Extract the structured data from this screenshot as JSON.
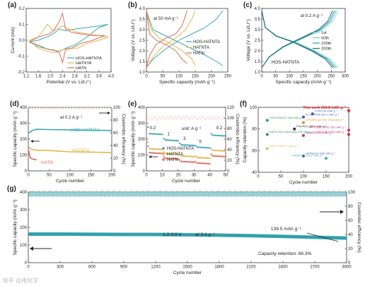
{
  "chart_data": [
    {
      "panel": "(a)",
      "type": "line",
      "xlabel": "Potential (V vs. Li/Li⁺)",
      "ylabel": "Current (mA)",
      "xlim": [
        1.2,
        4.0
      ],
      "ylim": [
        -0.2,
        0.2
      ],
      "xticks": [
        "1.2",
        "1.6",
        "2.0",
        "2.4",
        "2.8",
        "3.2",
        "3.6",
        "4.0"
      ],
      "yticks": [
        "-0.2",
        "-0.1",
        "0.0",
        "0.1",
        "0.2"
      ],
      "legend": [
        "HOS-HATNTA",
        "HATNTA",
        "HATN"
      ],
      "colors": [
        "#3aa9b4",
        "#e0b84c",
        "#e06c5c"
      ],
      "series": [
        {
          "name": "HOS-HATNTA",
          "x": [
            1.3,
            1.6,
            2.0,
            2.3,
            2.5,
            2.8,
            3.2,
            3.6,
            3.9,
            3.6,
            3.2,
            2.8,
            2.5,
            2.3,
            2.0,
            1.6,
            1.3
          ],
          "y": [
            -0.01,
            0.0,
            0.03,
            0.07,
            0.06,
            0.07,
            0.08,
            0.09,
            0.1,
            0.08,
            0.02,
            -0.03,
            -0.05,
            -0.07,
            -0.06,
            -0.04,
            -0.01
          ]
        },
        {
          "name": "HATNTA",
          "x": [
            1.3,
            1.6,
            1.9,
            2.1,
            2.4,
            2.6,
            2.9,
            3.2,
            3.6,
            3.9,
            3.6,
            3.2,
            2.9,
            2.6,
            2.4,
            2.1,
            1.9,
            1.6,
            1.3
          ],
          "y": [
            0.0,
            0.02,
            0.1,
            0.06,
            0.09,
            0.07,
            0.05,
            0.04,
            0.03,
            0.02,
            0.0,
            -0.02,
            -0.05,
            -0.05,
            -0.06,
            -0.08,
            -0.07,
            -0.05,
            0.0
          ]
        },
        {
          "name": "HATN",
          "x": [
            1.3,
            1.6,
            1.95,
            2.1,
            2.3,
            2.4,
            2.5,
            2.7,
            3.0,
            3.4,
            3.8,
            3.4,
            3.0,
            2.7,
            2.5,
            2.4,
            2.3,
            2.1,
            1.95,
            1.6,
            1.3
          ],
          "y": [
            -0.01,
            0.02,
            0.04,
            0.06,
            0.12,
            0.17,
            0.07,
            0.05,
            0.04,
            0.03,
            0.03,
            0.0,
            -0.02,
            -0.05,
            -0.06,
            -0.14,
            -0.08,
            -0.06,
            -0.06,
            -0.03,
            -0.01
          ]
        }
      ]
    },
    {
      "panel": "(b)",
      "type": "line",
      "xlabel": "Specific capacity (mAh g⁻¹)",
      "ylabel": "Voltage (V vs. Li/Li⁺)",
      "xlim": [
        0,
        250
      ],
      "ylim": [
        1.0,
        4.0
      ],
      "xticks": [
        "0",
        "50",
        "100",
        "150",
        "200",
        "250"
      ],
      "yticks": [
        "1.0",
        "1.5",
        "2.0",
        "2.5",
        "3.0",
        "3.5",
        "4.0"
      ],
      "annotation": "at 50 mA g⁻¹",
      "legend": [
        "HOS-HATNTA",
        "HATNTA",
        "HATN"
      ],
      "colors": [
        "#3aa9b4",
        "#e0b84c",
        "#e06c5c"
      ],
      "series": [
        {
          "name": "HOS-HATNTA charge",
          "x": [
            0,
            20,
            60,
            100,
            140,
            180,
            215,
            235
          ],
          "y": [
            1.2,
            1.6,
            2.1,
            2.5,
            2.8,
            3.1,
            3.5,
            3.9
          ]
        },
        {
          "name": "HOS-HATNTA discharge",
          "x": [
            0,
            20,
            60,
            100,
            140,
            180,
            215,
            235
          ],
          "y": [
            3.9,
            3.0,
            2.7,
            2.4,
            2.1,
            1.8,
            1.5,
            1.3
          ]
        },
        {
          "name": "HATNTA charge",
          "x": [
            0,
            20,
            50,
            90,
            120,
            140,
            150
          ],
          "y": [
            1.2,
            1.7,
            2.2,
            2.6,
            3.0,
            3.5,
            3.9
          ]
        },
        {
          "name": "HATNTA discharge",
          "x": [
            0,
            15,
            40,
            80,
            110,
            140,
            150
          ],
          "y": [
            3.9,
            3.0,
            2.6,
            2.3,
            2.0,
            1.6,
            1.3
          ]
        },
        {
          "name": "HATN charge",
          "x": [
            0,
            10,
            30,
            60,
            90,
            110,
            125
          ],
          "y": [
            1.2,
            1.8,
            2.3,
            2.6,
            2.8,
            3.2,
            3.9
          ]
        },
        {
          "name": "HATN discharge",
          "x": [
            0,
            10,
            30,
            60,
            90,
            110,
            125
          ],
          "y": [
            3.9,
            2.8,
            2.5,
            2.3,
            2.0,
            1.6,
            1.4
          ]
        }
      ]
    },
    {
      "panel": "(c)",
      "type": "line",
      "xlabel": "Specific capacity (mAh g⁻¹)",
      "ylabel": "Voltage (V vs. Li/Li⁺)",
      "xlim": [
        0,
        300
      ],
      "ylim": [
        1.0,
        4.0
      ],
      "xticks": [
        "0",
        "50",
        "100",
        "150",
        "200",
        "250",
        "300"
      ],
      "yticks": [
        "1.0",
        "1.5",
        "2.0",
        "2.5",
        "3.0",
        "3.5",
        "4.0"
      ],
      "annotation": "at 0.2 A g⁻¹",
      "sample": "HOS-HATNTA",
      "legend": [
        "1st",
        "50th",
        "100th",
        "200th"
      ],
      "colors": [
        "#9fd8dc",
        "#6cc3c9",
        "#2e9aa3",
        "#1f6f73"
      ],
      "series": [
        {
          "name": "1st",
          "cap": 275
        },
        {
          "name": "50th",
          "cap": 268
        },
        {
          "name": "100th",
          "cap": 262
        },
        {
          "name": "200th",
          "cap": 255
        }
      ]
    },
    {
      "panel": "(d)",
      "type": "line",
      "xlabel": "Cycle number",
      "ylabel": "Specific capacity (mAh g⁻¹)",
      "y2label": "Coulombic efficiency (%)",
      "xlim": [
        0,
        200
      ],
      "ylim": [
        0,
        400
      ],
      "y2lim": [
        0,
        100
      ],
      "xticks": [
        "0",
        "50",
        "100",
        "150",
        "200"
      ],
      "yticks": [
        "0",
        "100",
        "200",
        "300",
        "400"
      ],
      "y2ticks": [
        "0",
        "20",
        "40",
        "60",
        "80",
        "100"
      ],
      "annotation": "at 0.2 A g⁻¹",
      "colors": [
        "#3aa9b4",
        "#e0b84c",
        "#e06c5c"
      ],
      "series": [
        {
          "name": "HOS-HATNTA",
          "x": [
            1,
            5,
            10,
            20,
            50,
            100,
            150,
            200
          ],
          "y": [
            240,
            245,
            255,
            262,
            260,
            258,
            256,
            254
          ]
        },
        {
          "name": "HATNTA",
          "x": [
            1,
            5,
            10,
            20,
            50,
            100,
            150,
            200
          ],
          "y": [
            150,
            140,
            135,
            130,
            128,
            120,
            118,
            115
          ]
        },
        {
          "name": "HATN",
          "x": [
            1,
            3,
            6,
            10,
            15,
            20
          ],
          "y": [
            130,
            95,
            80,
            75,
            72,
            70
          ]
        }
      ]
    },
    {
      "panel": "(e)",
      "type": "scatter",
      "xlabel": "Cycle number",
      "ylabel": "Specific capacity (mAh g⁻¹)",
      "y2label": "Coulombic efficiency (%)",
      "xlim": [
        0,
        50
      ],
      "ylim": [
        0,
        400
      ],
      "y2lim": [
        0,
        120
      ],
      "xticks": [
        "0",
        "10",
        "20",
        "30",
        "40",
        "50"
      ],
      "yticks": [
        "0",
        "100",
        "200",
        "300",
        "400"
      ],
      "y2ticks": [
        "0",
        "20",
        "40",
        "60",
        "80",
        "100",
        "120"
      ],
      "annotation": "unit: A g⁻¹",
      "rate_labels": [
        "0.2",
        "1",
        "3",
        "5",
        "0.2"
      ],
      "legend": [
        "HOS-HATNTA",
        "HATNTA",
        "HATN"
      ],
      "colors": [
        "#3aa9b4",
        "#e0b84c",
        "#e06c5c"
      ],
      "series": [
        {
          "name": "HOS-HATNTA",
          "levels": [
            235,
            195,
            165,
            150,
            225
          ]
        },
        {
          "name": "HATNTA",
          "levels": [
            140,
            110,
            95,
            85,
            130
          ]
        },
        {
          "name": "HATN",
          "levels": [
            115,
            80,
            60,
            50,
            95
          ]
        }
      ]
    },
    {
      "panel": "(f)",
      "type": "scatter",
      "xlabel": "Cycle number",
      "ylabel": "Capacity retention (%)",
      "xlim": [
        0,
        200
      ],
      "ylim": [
        40,
        100
      ],
      "xticks": [
        "0",
        "50",
        "100",
        "150",
        "200"
      ],
      "yticks": [
        "40",
        "60",
        "80",
        "100"
      ],
      "points": [
        {
          "label": "This work  254.8 mAh g⁻¹",
          "x": 200,
          "y": 97,
          "color": "#e0262b"
        },
        {
          "label": "COFD  26 mAh g⁻¹",
          "x": 120,
          "y": 94,
          "color": "#3b5bb0"
        },
        {
          "label": "Fe-HATNTA 162.2 mAh g⁻¹",
          "x": 100,
          "y": 91,
          "color": "#3b5bb0"
        },
        {
          "label": "HATNTA@GO 180 mAh g⁻¹",
          "x": 20,
          "y": 88,
          "color": "#2e9a4a"
        },
        {
          "label": "CPHATN-1a HOF 193 mAh g⁻¹",
          "x": 100,
          "y": 86,
          "color": "#e08a2b"
        },
        {
          "label": "Poly BQ1 266.8 mAh g⁻¹",
          "x": 80,
          "y": 80,
          "color": "#333333"
        },
        {
          "label": "HATN-SoLiI electrolyte 208 mAh g⁻¹",
          "x": 20,
          "y": 75,
          "color": "#2e9a4a"
        },
        {
          "label": "HAT-CN@Cu/SG 206 mAh g⁻¹",
          "x": 200,
          "y": 79,
          "color": "#c0308a"
        },
        {
          "label": "HAT-4CN 210.5 mAh g⁻¹",
          "x": 200,
          "y": 75,
          "color": "#e0262b"
        },
        {
          "label": "NSHATN 224 mAh g⁻¹",
          "x": 100,
          "y": 74,
          "color": "#c0308a"
        },
        {
          "label": "HATN-CMP 91 mAh g⁻¹",
          "x": 20,
          "y": 62,
          "color": "#e0b84c"
        },
        {
          "label": "HATN/rGO 228 mAh g⁻¹",
          "x": 100,
          "y": 55,
          "color": "#3b5bb0"
        },
        {
          "label": "HATNPT2 210.5 mAh g⁻¹",
          "x": 150,
          "y": 53,
          "color": "#3aa9b4"
        }
      ]
    },
    {
      "panel": "(g)",
      "type": "scatter",
      "xlabel": "Cycle number",
      "ylabel": "Specific capacity (mAh g⁻¹)",
      "y2label": "Coulombic efficiency (%)",
      "xlim": [
        0,
        3000
      ],
      "ylim": [
        0,
        400
      ],
      "y2lim": [
        0,
        100
      ],
      "xticks": [
        "0",
        "300",
        "600",
        "900",
        "1200",
        "1500",
        "1800",
        "2100",
        "2400",
        "2700",
        "3000"
      ],
      "yticks": [
        "0",
        "100",
        "200",
        "300",
        "400"
      ],
      "y2ticks": [
        "0",
        "20",
        "40",
        "60",
        "80",
        "100"
      ],
      "annotation_voltage": "1.2-3.9 V",
      "annotation_rate": "at 3 A g⁻¹",
      "annotation_final": "139.5 mAh g⁻¹",
      "annotation_retention": "Capacity retention: 86.3%",
      "series": [
        {
          "name": "capacity",
          "x": [
            0,
            300,
            600,
            900,
            1200,
            1500,
            1800,
            2100,
            2400,
            2700,
            3000
          ],
          "y": [
            162,
            162,
            161,
            160,
            160,
            158,
            156,
            153,
            149,
            144,
            139.5
          ]
        },
        {
          "name": "coulombic efficiency",
          "x": [
            0,
            3000
          ],
          "y": [
            100,
            100
          ]
        }
      ]
    }
  ],
  "watermark": "知乎 @电化学"
}
